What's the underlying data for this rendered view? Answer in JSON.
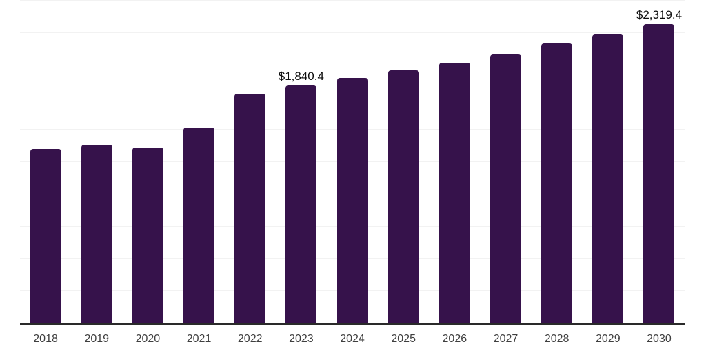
{
  "chart_data": {
    "type": "bar",
    "title": "",
    "xlabel": "",
    "ylabel": "",
    "categories": [
      "2018",
      "2019",
      "2020",
      "2021",
      "2022",
      "2023",
      "2024",
      "2025",
      "2026",
      "2027",
      "2028",
      "2029",
      "2030"
    ],
    "values": [
      1350,
      1384,
      1363,
      1517,
      1779,
      1840.4,
      1900,
      1958,
      2020,
      2086,
      2168,
      2240,
      2319.4
    ],
    "data_labels": {
      "2023": "$1,840.4",
      "2030": "$2,319.4"
    },
    "ylim": [
      0,
      2500
    ],
    "gridline_step": 250,
    "grid": "horizontal",
    "legend": "none",
    "colors": {
      "bar": "#36124B",
      "gridline": "#f2f2f2",
      "axis_line": "#2a2a2a",
      "tick_label": "#3f3f3f",
      "data_label": "#0d0d0d",
      "background": "#ffffff"
    }
  }
}
